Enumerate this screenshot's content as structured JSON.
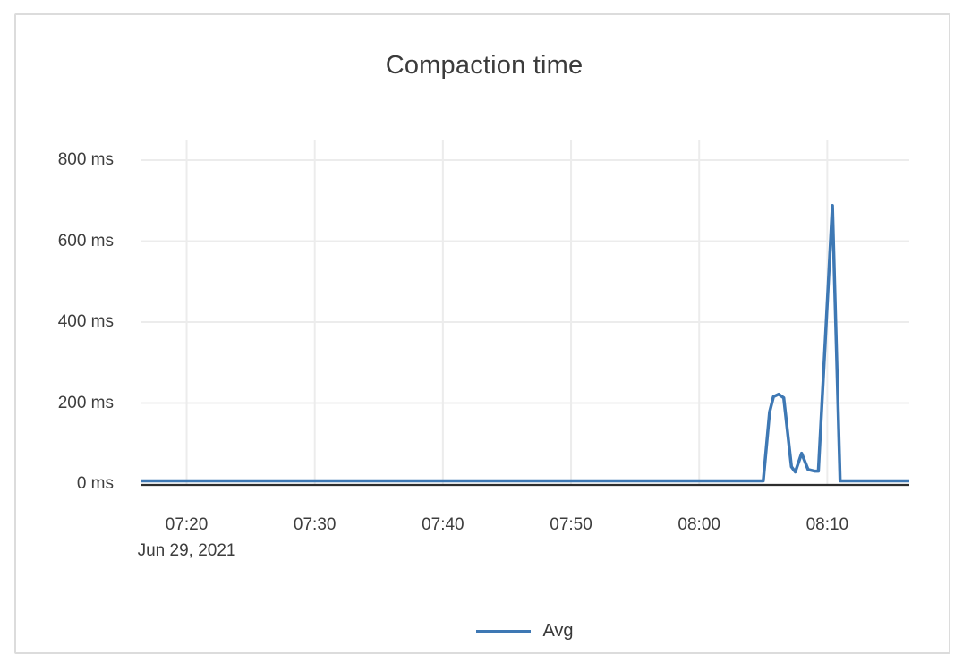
{
  "colors": {
    "series_blue": "#3e78b4",
    "grid_line": "#ececec",
    "axis_line": "#2d2d2d",
    "text": "#3d3d3d",
    "panel_border": "#dcdcdc",
    "background": "#ffffff"
  },
  "chart_data": {
    "type": "line",
    "title": "Compaction time",
    "xlabel": "",
    "ylabel": "",
    "grid": true,
    "legend_position": "bottom",
    "x_axis": {
      "range": [
        "07:16:24",
        "08:16:24"
      ],
      "date_label": "Jun 29, 2021",
      "ticks": [
        {
          "time": "07:20",
          "label": "07:20",
          "sublabel": "Jun 29, 2021"
        },
        {
          "time": "07:30",
          "label": "07:30",
          "sublabel": ""
        },
        {
          "time": "07:40",
          "label": "07:40",
          "sublabel": ""
        },
        {
          "time": "07:50",
          "label": "07:50",
          "sublabel": ""
        },
        {
          "time": "08:00",
          "label": "08:00",
          "sublabel": ""
        },
        {
          "time": "08:10",
          "label": "08:10",
          "sublabel": ""
        }
      ]
    },
    "y_axis": {
      "unit": "ms",
      "range": [
        0,
        800
      ],
      "ticks": [
        {
          "value": 0,
          "label": "0 ms"
        },
        {
          "value": 200,
          "label": "200 ms"
        },
        {
          "value": 400,
          "label": "400 ms"
        },
        {
          "value": 600,
          "label": "600 ms"
        },
        {
          "value": 800,
          "label": "800 ms"
        }
      ]
    },
    "series": [
      {
        "name": "Avg",
        "color": "#3e78b4",
        "points": [
          [
            "07:16:24",
            0
          ],
          [
            "08:05:00",
            0
          ],
          [
            "08:05:30",
            170
          ],
          [
            "08:05:48",
            208
          ],
          [
            "08:06:12",
            214
          ],
          [
            "08:06:36",
            205
          ],
          [
            "08:07:12",
            35
          ],
          [
            "08:07:30",
            22
          ],
          [
            "08:08:00",
            68
          ],
          [
            "08:08:30",
            28
          ],
          [
            "08:09:00",
            24
          ],
          [
            "08:09:18",
            24
          ],
          [
            "08:10:24",
            680
          ],
          [
            "08:11:00",
            0
          ],
          [
            "08:16:24",
            0
          ]
        ]
      }
    ]
  }
}
